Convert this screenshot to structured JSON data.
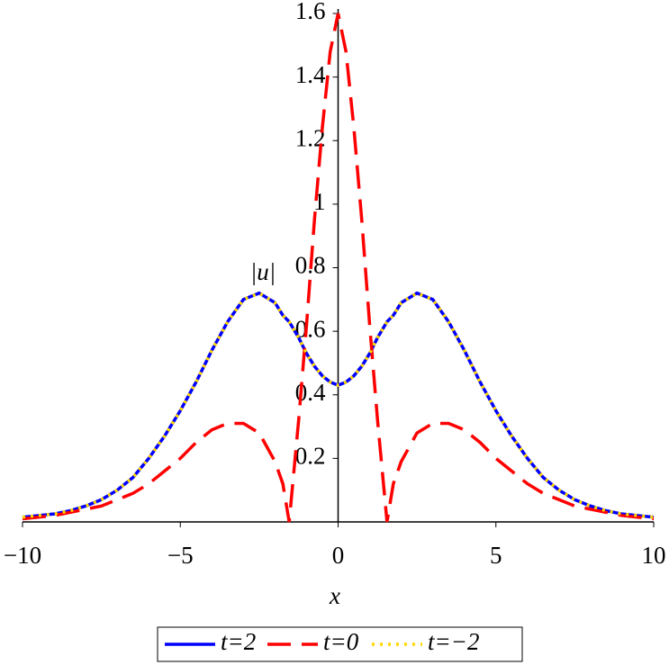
{
  "chart_data": {
    "type": "line",
    "xlabel": "x",
    "ylabel": "|u|",
    "x": [
      -10,
      -9.5,
      -9,
      -8.5,
      -8,
      -7.5,
      -7,
      -6.5,
      -6,
      -5.5,
      -5,
      -4.5,
      -4,
      -3.5,
      -3,
      -2.5,
      -2,
      -1.75,
      -1.55,
      -1.25,
      -1,
      -0.75,
      -0.5,
      -0.25,
      0,
      0.25,
      0.5,
      0.75,
      1,
      1.25,
      1.55,
      1.75,
      2,
      2.5,
      3,
      3.5,
      4,
      4.5,
      5,
      5.5,
      6,
      6.5,
      7,
      7.5,
      8,
      8.5,
      9,
      9.5,
      10
    ],
    "series": [
      {
        "name": "t=2",
        "color": "#0000ff",
        "style": "solid",
        "values": [
          0.015,
          0.02,
          0.025,
          0.035,
          0.05,
          0.07,
          0.1,
          0.14,
          0.2,
          0.27,
          0.35,
          0.44,
          0.54,
          0.63,
          0.7,
          0.72,
          0.69,
          0.65,
          0.63,
          0.58,
          0.53,
          0.49,
          0.46,
          0.44,
          0.43,
          0.44,
          0.46,
          0.49,
          0.53,
          0.58,
          0.63,
          0.65,
          0.69,
          0.72,
          0.7,
          0.63,
          0.54,
          0.44,
          0.35,
          0.27,
          0.2,
          0.14,
          0.1,
          0.07,
          0.05,
          0.035,
          0.025,
          0.02,
          0.015
        ]
      },
      {
        "name": "t=0",
        "color": "#ff0000",
        "style": "dashed",
        "values": [
          0.01,
          0.015,
          0.02,
          0.03,
          0.04,
          0.05,
          0.07,
          0.09,
          0.12,
          0.16,
          0.2,
          0.25,
          0.29,
          0.31,
          0.31,
          0.28,
          0.19,
          0.12,
          0,
          0.32,
          0.62,
          0.95,
          1.24,
          1.48,
          1.6,
          1.48,
          1.24,
          0.95,
          0.62,
          0.32,
          0,
          0.12,
          0.19,
          0.28,
          0.31,
          0.31,
          0.29,
          0.25,
          0.2,
          0.16,
          0.12,
          0.09,
          0.07,
          0.05,
          0.04,
          0.03,
          0.02,
          0.015,
          0.01
        ]
      },
      {
        "name": "t=−2",
        "color": "#ffd700",
        "style": "dotted",
        "values": [
          0.015,
          0.02,
          0.025,
          0.035,
          0.05,
          0.07,
          0.1,
          0.14,
          0.2,
          0.27,
          0.35,
          0.44,
          0.54,
          0.63,
          0.7,
          0.72,
          0.69,
          0.65,
          0.63,
          0.58,
          0.53,
          0.49,
          0.46,
          0.44,
          0.43,
          0.44,
          0.46,
          0.49,
          0.53,
          0.58,
          0.63,
          0.65,
          0.69,
          0.72,
          0.7,
          0.63,
          0.54,
          0.44,
          0.35,
          0.27,
          0.2,
          0.14,
          0.1,
          0.07,
          0.05,
          0.035,
          0.025,
          0.02,
          0.015
        ]
      }
    ],
    "xlim": [
      -10,
      10
    ],
    "xticks": [
      {
        "value": -10,
        "label": "−10"
      },
      {
        "value": -5,
        "label": "−5"
      },
      0,
      5,
      10
    ],
    "ylim": [
      0,
      1.6
    ],
    "yticks": [
      0.2,
      0.4,
      0.6,
      0.8,
      1,
      1.2,
      1.4,
      1.6
    ],
    "legend": "bottom"
  }
}
